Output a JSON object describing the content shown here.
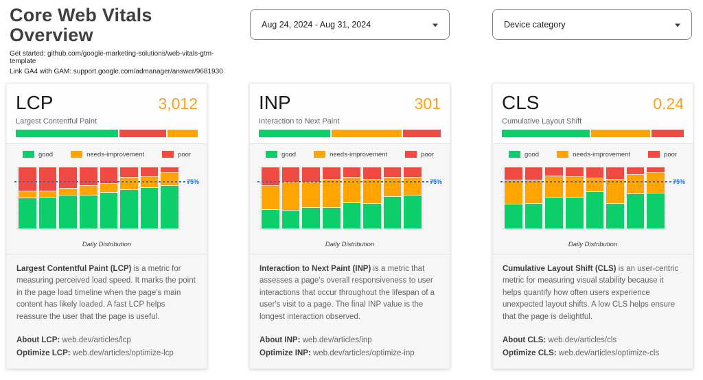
{
  "page": {
    "title": "Core Web Vitals Overview",
    "subtitle_lines": [
      "Get started: github.com/google-marketing-solutions/web-vitals-gtm-template",
      "Link GA4 with GAM: support.google.com/admanager/answer/9681930"
    ]
  },
  "filters": {
    "date_range": {
      "value": "Aug 24, 2024 - Aug 31, 2024"
    },
    "device_category": {
      "value": "Device category"
    }
  },
  "colors": {
    "good": "#0CCE6B",
    "needs_improvement": "#FFA400",
    "poor": "#F04B42",
    "value_accent": "#FFA113",
    "threshold_line": "#1A73E8"
  },
  "legend": [
    {
      "key": "good",
      "label": "good"
    },
    {
      "key": "needs_improvement",
      "label": "needs-improvement"
    },
    {
      "key": "poor",
      "label": "poor"
    }
  ],
  "threshold": {
    "percent": 75,
    "label": "75%"
  },
  "metrics": [
    {
      "id": "lcp",
      "title": "LCP",
      "value": "3,012",
      "subtitle": "Largest Contentful Paint",
      "overall_bar": [
        {
          "key": "good",
          "pct": 57
        },
        {
          "key": "poor",
          "pct": 26
        },
        {
          "key": "needs_improvement",
          "pct": 17
        }
      ],
      "chart_caption": "Daily Distribution",
      "daily": {
        "type": "stacked-bar",
        "series_order": [
          "good",
          "needs_improvement",
          "poor"
        ],
        "days": [
          [
            49,
            12,
            39
          ],
          [
            50,
            11,
            39
          ],
          [
            54,
            11,
            35
          ],
          [
            54,
            16,
            30
          ],
          [
            58,
            15,
            27
          ],
          [
            63,
            20,
            17
          ],
          [
            66,
            18,
            16
          ],
          [
            70,
            21,
            9
          ]
        ]
      },
      "description_lead": "Largest Contentful Paint (LCP)",
      "description_rest": "is a metric for measuring perceived load speed. It marks the point in the page load timeline when the page's main content has likely loaded. A fast LCP helps reassure the user that the page is useful.",
      "about_label": "About LCP:",
      "about_url": "web.dev/articles/lcp",
      "optimize_label": "Optimize LCP:",
      "optimize_url": "web.dev/articles/optimize-lcp"
    },
    {
      "id": "inp",
      "title": "INP",
      "value": "301",
      "subtitle": "Interaction to Next Paint",
      "overall_bar": [
        {
          "key": "good",
          "pct": 40
        },
        {
          "key": "needs_improvement",
          "pct": 39
        },
        {
          "key": "poor",
          "pct": 21
        }
      ],
      "chart_caption": "Daily Distribution",
      "daily": {
        "type": "stacked-bar",
        "series_order": [
          "good",
          "needs_improvement",
          "poor"
        ],
        "days": [
          [
            30,
            40,
            30
          ],
          [
            29,
            46,
            25
          ],
          [
            34,
            41,
            25
          ],
          [
            34,
            46,
            20
          ],
          [
            41,
            42,
            17
          ],
          [
            40,
            40,
            20
          ],
          [
            52,
            31,
            17
          ],
          [
            54,
            29,
            17
          ]
        ]
      },
      "description_lead": "Interaction to Next Paint (INP)",
      "description_rest": "is a metric that assesses a page's overall responsiveness to user interactions that occur throughout the lifespan of a user's visit to a page. The final INP value is the longest interaction observed.",
      "about_label": "About INP:",
      "about_url": "web.dev/articles/inp",
      "optimize_label": "Optimize INP:",
      "optimize_url": "web.dev/articles/optimize-inp"
    },
    {
      "id": "cls",
      "title": "CLS",
      "value": "0.24",
      "subtitle": "Cumulative Layout Shift",
      "overall_bar": [
        {
          "key": "good",
          "pct": 49
        },
        {
          "key": "needs_improvement",
          "pct": 33
        },
        {
          "key": "poor",
          "pct": 18
        }
      ],
      "chart_caption": "Daily Distribution",
      "daily": {
        "type": "stacked-bar",
        "series_order": [
          "good",
          "needs_improvement",
          "poor"
        ],
        "days": [
          [
            39,
            40,
            21
          ],
          [
            40,
            39,
            21
          ],
          [
            50,
            35,
            15
          ],
          [
            50,
            34,
            16
          ],
          [
            59,
            23,
            18
          ],
          [
            40,
            40,
            20
          ],
          [
            56,
            32,
            12
          ],
          [
            57,
            34,
            9
          ]
        ]
      },
      "description_lead": "Cumulative Layout Shift (CLS)",
      "description_rest": "is an user-centric metric for measuring visual stability because it helps quantify how often users experience unexpected layout shifts. A low CLS helps ensure that the page is delightful.",
      "about_label": "About CLS:",
      "about_url": "web.dev/articles/cls",
      "optimize_label": "Optimize CLS:",
      "optimize_url": "web.dev/articles/optimize-cls"
    }
  ]
}
